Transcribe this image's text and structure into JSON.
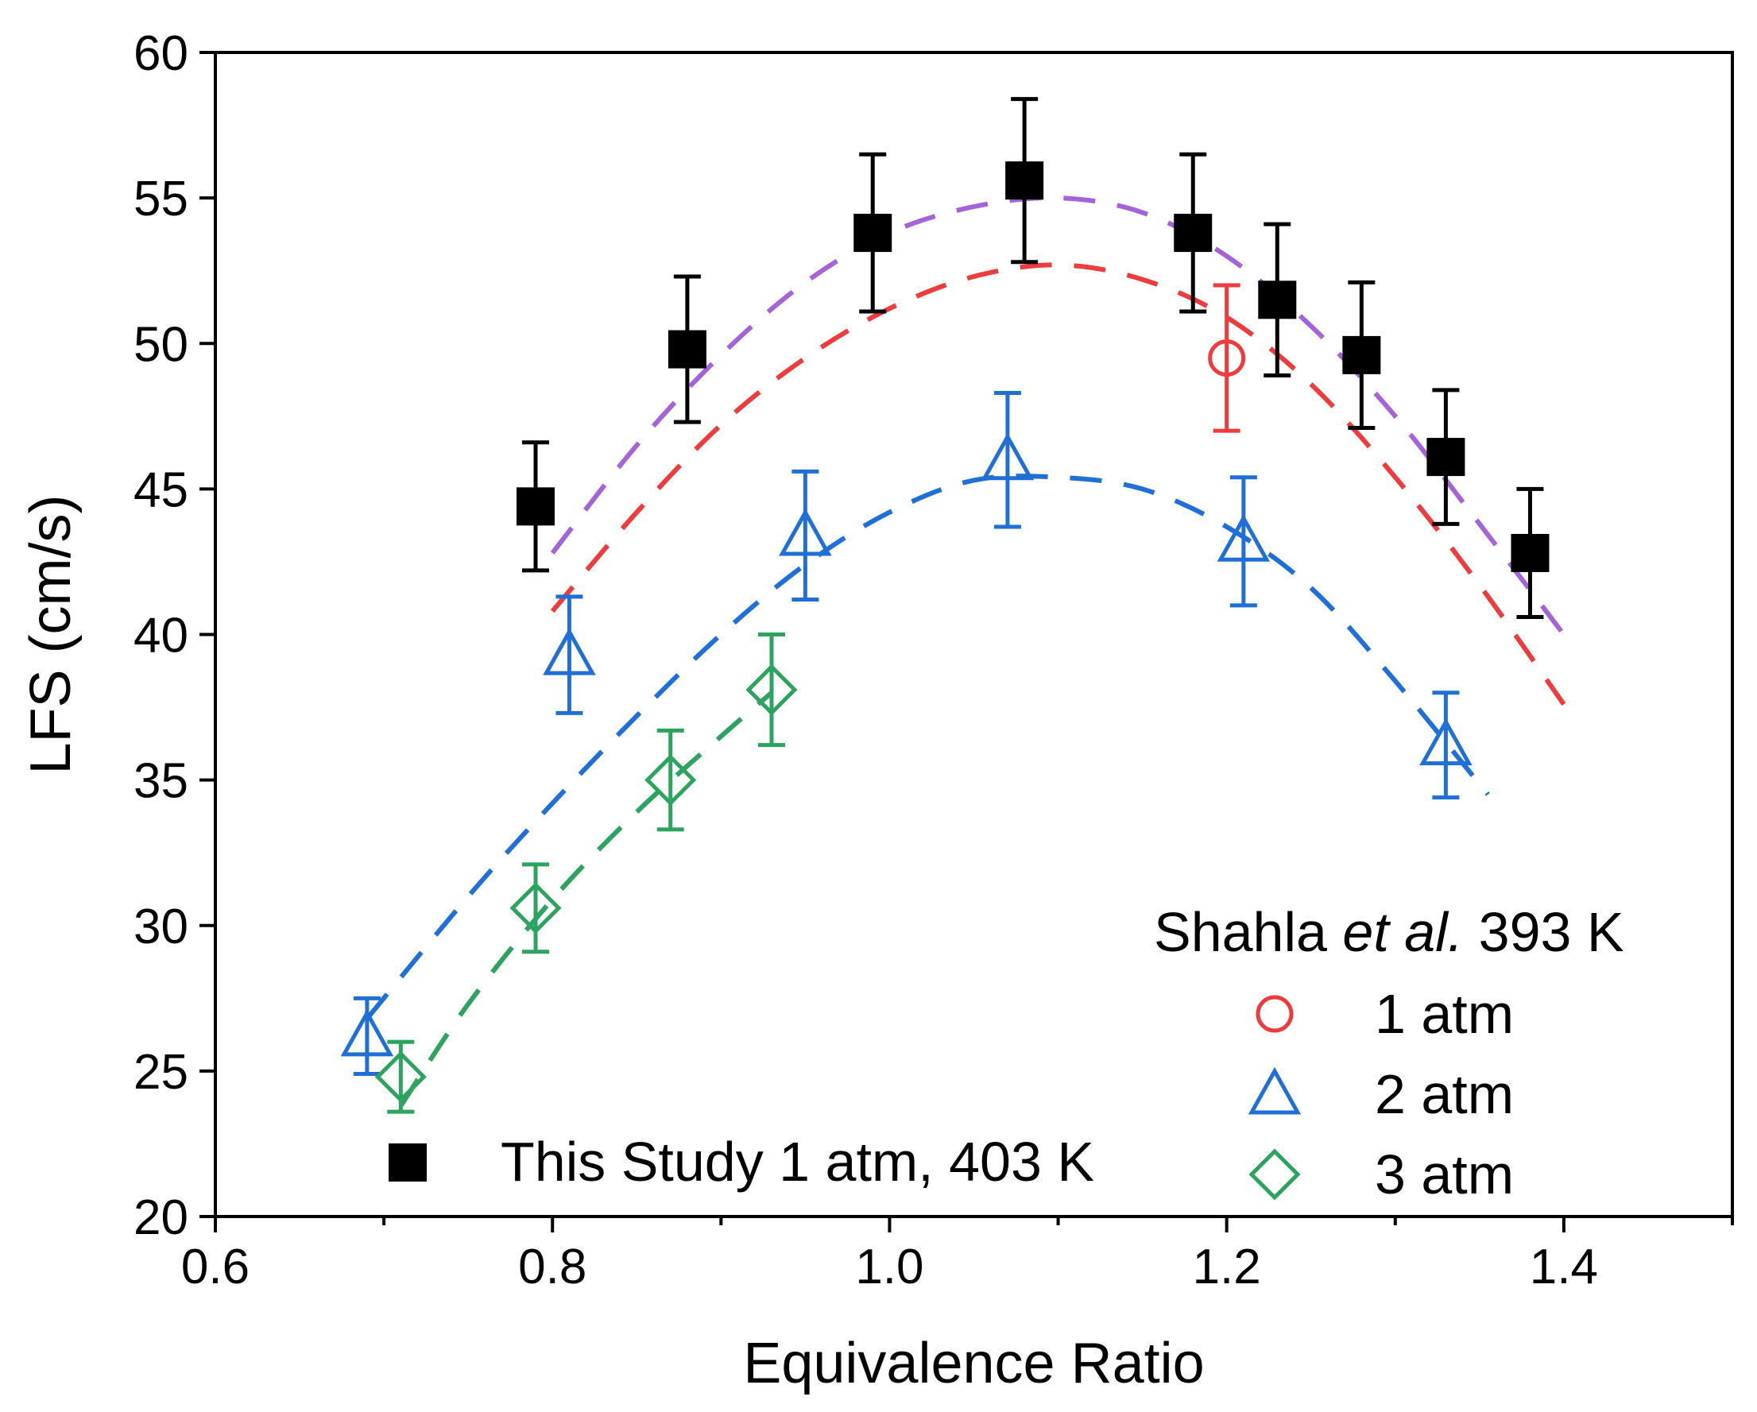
{
  "chart_data": {
    "type": "scatter",
    "xlabel": "Equivalence Ratio",
    "ylabel": "LFS (cm/s)",
    "xlim": [
      0.6,
      1.5
    ],
    "ylim": [
      20,
      60
    ],
    "xticks": [
      "0.6",
      "0.8",
      "1.0",
      "1.2",
      "1.4"
    ],
    "xtick_values": [
      0.6,
      0.8,
      1.0,
      1.2,
      1.4
    ],
    "yticks": [
      "20",
      "25",
      "30",
      "35",
      "40",
      "45",
      "50",
      "55",
      "60"
    ],
    "ytick_values": [
      20,
      25,
      30,
      35,
      40,
      45,
      50,
      55,
      60
    ],
    "grid": false,
    "series": [
      {
        "name": "This Study 1 atm, 403 K",
        "marker": "filled-square",
        "color": "#000000",
        "x": [
          0.79,
          0.88,
          0.99,
          1.08,
          1.18,
          1.23,
          1.28,
          1.33,
          1.38
        ],
        "y": [
          44.4,
          49.8,
          53.8,
          55.6,
          53.8,
          51.5,
          49.6,
          46.1,
          42.8
        ],
        "err": [
          2.2,
          2.5,
          2.7,
          2.8,
          2.7,
          2.6,
          2.5,
          2.3,
          2.2
        ]
      },
      {
        "name": "1 atm",
        "group": "Shahla et al. 393 K",
        "marker": "open-circle",
        "color": "#ee3b3b",
        "x": [
          1.2
        ],
        "y": [
          49.5
        ],
        "err": [
          2.5
        ]
      },
      {
        "name": "2 atm",
        "group": "Shahla et al. 393 K",
        "marker": "open-triangle",
        "color": "#1f6fd6",
        "x": [
          0.69,
          0.81,
          0.95,
          1.07,
          1.21,
          1.33
        ],
        "y": [
          26.2,
          39.3,
          43.4,
          46.0,
          43.2,
          36.2
        ],
        "err": [
          1.3,
          2.0,
          2.2,
          2.3,
          2.2,
          1.8
        ]
      },
      {
        "name": "3 atm",
        "group": "Shahla et al. 393 K",
        "marker": "open-diamond",
        "color": "#2ca35f",
        "x": [
          0.71,
          0.79,
          0.87,
          0.93
        ],
        "y": [
          24.8,
          30.6,
          35.0,
          38.1
        ],
        "err": [
          1.2,
          1.5,
          1.7,
          1.9
        ]
      }
    ],
    "fits": [
      {
        "color": "#a463d9",
        "x": [
          0.8,
          0.85,
          0.9,
          0.95,
          1.0,
          1.05,
          1.1,
          1.15,
          1.2,
          1.25,
          1.3,
          1.35,
          1.4
        ],
        "y": [
          42.8,
          46.5,
          49.6,
          52.1,
          53.8,
          54.7,
          55.0,
          54.5,
          53.0,
          50.6,
          47.5,
          43.8,
          40.0
        ]
      },
      {
        "color": "#ee3b3b",
        "x": [
          0.8,
          0.85,
          0.9,
          0.95,
          1.0,
          1.05,
          1.1,
          1.15,
          1.2,
          1.25,
          1.3,
          1.35,
          1.4
        ],
        "y": [
          40.8,
          44.2,
          47.2,
          49.5,
          51.2,
          52.3,
          52.7,
          52.2,
          50.9,
          48.6,
          45.4,
          41.7,
          37.6
        ]
      },
      {
        "color": "#1f6fd6",
        "x": [
          0.69,
          0.75,
          0.8,
          0.85,
          0.9,
          0.95,
          1.0,
          1.05,
          1.1,
          1.15,
          1.2,
          1.25,
          1.3,
          1.355
        ],
        "y": [
          26.8,
          31.0,
          34.2,
          37.2,
          40.0,
          42.4,
          44.2,
          45.3,
          45.4,
          45.0,
          43.7,
          41.6,
          38.4,
          34.5
        ]
      },
      {
        "color": "#2ca35f",
        "x": [
          0.71,
          0.75,
          0.8,
          0.85,
          0.9,
          0.93
        ],
        "y": [
          23.8,
          27.3,
          30.9,
          33.9,
          36.5,
          38.0
        ]
      }
    ],
    "legend_main": "This Study 1 atm, 403 K",
    "legend_group_title": {
      "name": "Shahla",
      "italic": "et al.",
      "suffix": "393 K"
    },
    "legend_placement": "bottom-right"
  }
}
